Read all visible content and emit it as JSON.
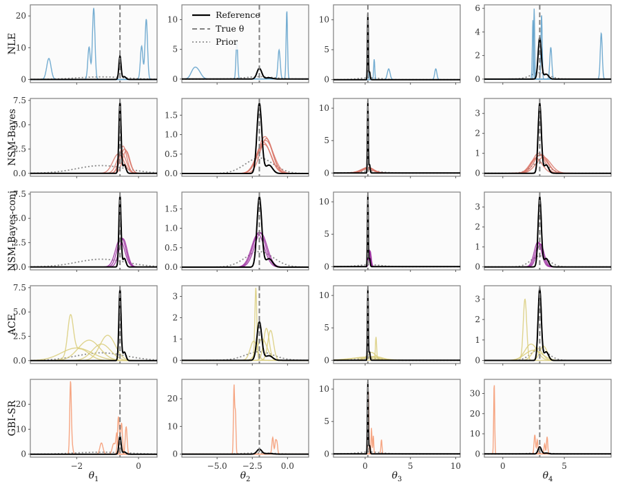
{
  "chart_data": {
    "type": "line",
    "title": "",
    "row_labels": [
      "NLE",
      "NSM-Bayes",
      "NSM-Bayes-conj",
      "ACE",
      "GBI-SR"
    ],
    "method_colors": {
      "NLE": "#5b9ec9",
      "NSM-Bayes": "#d9776a",
      "NSM-Bayes-conj": "#9a2b9e",
      "ACE": "#d9cc7a",
      "GBI-SR": "#f4956c"
    },
    "reference_color": "#000000",
    "true_line_color": "#808080",
    "prior_color": "#888888",
    "legend": {
      "location": "top-left of column 2, row 1",
      "entries": [
        {
          "label": "Reference",
          "style": "solid"
        },
        {
          "label": "True θ",
          "style": "dashed"
        },
        {
          "label": "Prior",
          "style": "dotted"
        }
      ]
    },
    "columns": [
      {
        "xlabel": "θ",
        "xlabel_sub": "1",
        "xlim": [
          -3.5,
          0.6
        ],
        "xticks": [
          -2,
          0
        ],
        "xtick_labels": [
          "−2",
          "0"
        ],
        "true_theta": -0.6
      },
      {
        "xlabel": "θ",
        "xlabel_sub": "2",
        "xlim": [
          -7.5,
          1.5
        ],
        "xticks": [
          -5,
          -2.5,
          0
        ],
        "xtick_labels": [
          "−5.0",
          "−2.5",
          "0.0"
        ],
        "true_theta": -2.0
      },
      {
        "xlabel": "θ",
        "xlabel_sub": "3",
        "xlim": [
          -3.5,
          10.5
        ],
        "xticks": [
          0,
          5,
          10
        ],
        "xtick_labels": [
          "0",
          "5",
          "10"
        ],
        "true_theta": 0.3
      },
      {
        "xlabel": "θ",
        "xlabel_sub": "4",
        "xlim": [
          -1.5,
          8.8
        ],
        "xticks": [
          0,
          5
        ],
        "xtick_labels": [
          "0",
          "5"
        ],
        "true_theta": 3.0
      }
    ],
    "reference": [
      {
        "center": -0.6,
        "sd": 0.035,
        "peak": 7.3
      },
      {
        "center": -2.0,
        "sd": 0.17,
        "peak": 1.8
      },
      {
        "center": 0.3,
        "sd": 0.045,
        "peak": 11.0
      },
      {
        "center": 3.0,
        "sd": 0.13,
        "peak": 3.5
      }
    ],
    "prior": [
      {
        "center": -1.2,
        "sd": 0.8,
        "peak": 0.8
      },
      {
        "center": -2.0,
        "sd": 1.0,
        "peak": 0.4
      },
      {
        "center": 0.5,
        "sd": 1.2,
        "peak": 0.3
      },
      {
        "center": 3.0,
        "sd": 0.7,
        "peak": 0.55
      }
    ],
    "panels": [
      {
        "method": "NLE",
        "ylims": [
          [
            -1,
            23.5
          ],
          [
            -0.6,
            12.5
          ],
          [
            -0.5,
            12.5
          ],
          [
            -0.3,
            6.3
          ]
        ],
        "yticks": [
          [
            0,
            10,
            20
          ],
          [
            0,
            5,
            10
          ],
          [
            0,
            5,
            10
          ],
          [
            0,
            2,
            4,
            6
          ]
        ],
        "ytick_labels": [
          [
            "0",
            "10",
            "20"
          ],
          [
            "0",
            "5",
            "10"
          ],
          [
            "0",
            "5",
            "10"
          ],
          [
            "0",
            "2",
            "4",
            "6"
          ]
        ],
        "estimates": [
          [
            [
              [
                -2.9,
                0.07,
                6.6
              ]
            ],
            [
              [
                -1.45,
                0.04,
                22.5
              ],
              [
                -1.6,
                0.04,
                10.2
              ]
            ],
            [
              [
                0.1,
                0.04,
                10.5
              ],
              [
                0.25,
                0.04,
                19
              ]
            ]
          ],
          [
            [
              [
                -6.4,
                0.25,
                1.5
              ],
              [
                -6.7,
                0.2,
                1.0
              ]
            ],
            [
              [
                -3.6,
                0.06,
                6.5
              ],
              [
                -0.6,
                0.08,
                4.9
              ],
              [
                -0.05,
                0.05,
                11.5
              ]
            ]
          ],
          [
            [
              [
                0.3,
                0.05,
                10.5
              ]
            ],
            [
              [
                1.0,
                0.06,
                3.4
              ],
              [
                2.6,
                0.15,
                1.8
              ]
            ],
            [
              [
                7.8,
                0.12,
                1.8
              ]
            ]
          ],
          [
            [
              [
                2.45,
                0.05,
                5.0
              ]
            ],
            [
              [
                2.55,
                0.04,
                6.0
              ],
              [
                3.15,
                0.05,
                5.5
              ]
            ],
            [
              [
                3.9,
                0.08,
                2.7
              ]
            ],
            [
              [
                8.0,
                0.08,
                3.9
              ]
            ]
          ]
        ]
      },
      {
        "method": "NSM-Bayes",
        "ylims": [
          [
            -0.3,
            7.7
          ],
          [
            -0.07,
            1.93
          ],
          [
            -0.5,
            11.5
          ],
          [
            -0.15,
            3.75
          ]
        ],
        "yticks": [
          [
            0,
            2.5,
            5,
            7.5
          ],
          [
            0,
            0.5,
            1,
            1.5
          ],
          [
            0,
            5,
            10
          ],
          [
            0,
            1,
            2,
            3
          ]
        ],
        "ytick_labels": [
          [
            "0.0",
            "2.5",
            "5.0",
            "7.5"
          ],
          [
            "0.0",
            "0.5",
            "1.0",
            "1.5"
          ],
          [
            "0",
            "5",
            "10"
          ],
          [
            "0",
            "1",
            "2",
            "3"
          ]
        ],
        "estimates": [
          [
            [
              [
                -0.5,
                0.12,
                2.8
              ]
            ],
            [
              [
                -0.4,
                0.12,
                2.3
              ]
            ],
            [
              [
                -0.55,
                0.15,
                2.1
              ]
            ],
            [
              [
                -0.65,
                0.18,
                2.0
              ]
            ],
            [
              [
                -0.45,
                0.14,
                2.5
              ]
            ]
          ],
          [
            [
              [
                -1.6,
                0.5,
                0.95
              ]
            ],
            [
              [
                -1.5,
                0.45,
                0.9
              ]
            ],
            [
              [
                -1.7,
                0.5,
                0.8
              ]
            ],
            [
              [
                -1.55,
                0.55,
                0.85
              ]
            ],
            [
              [
                -1.65,
                0.5,
                0.75
              ]
            ]
          ],
          [
            [
              [
                0.3,
                0.6,
                0.9
              ]
            ],
            [
              [
                0.2,
                0.7,
                0.8
              ]
            ],
            [
              [
                0.4,
                0.65,
                0.7
              ]
            ],
            [
              [
                0.1,
                0.75,
                0.6
              ]
            ],
            [
              [
                0.35,
                0.6,
                0.85
              ]
            ]
          ],
          [
            [
              [
                2.9,
                0.5,
                1.0
              ]
            ],
            [
              [
                3.1,
                0.55,
                0.95
              ]
            ],
            [
              [
                3.3,
                0.6,
                0.8
              ]
            ],
            [
              [
                2.7,
                0.5,
                0.75
              ]
            ],
            [
              [
                3.0,
                0.6,
                0.9
              ]
            ]
          ]
        ]
      },
      {
        "method": "NSM-Bayes-conj",
        "ylims": [
          [
            -0.3,
            7.7
          ],
          [
            -0.07,
            1.93
          ],
          [
            -0.5,
            11.5
          ],
          [
            -0.15,
            3.75
          ]
        ],
        "yticks": [
          [
            0,
            2.5,
            5,
            7.5
          ],
          [
            0,
            0.5,
            1,
            1.5
          ],
          [
            0,
            5,
            10
          ],
          [
            0,
            1,
            2,
            3
          ]
        ],
        "ytick_labels": [
          [
            "0.0",
            "2.5",
            "5.0",
            "7.5"
          ],
          [
            "0.0",
            "0.5",
            "1.0",
            "1.5"
          ],
          [
            "0",
            "5",
            "10"
          ],
          [
            "0",
            "1",
            "2",
            "3"
          ]
        ],
        "estimates": [
          [
            [
              [
                -0.55,
                0.14,
                3.0
              ]
            ],
            [
              [
                -0.5,
                0.13,
                2.9
              ]
            ],
            [
              [
                -0.6,
                0.15,
                2.8
              ]
            ]
          ],
          [
            [
              [
                -2.0,
                0.45,
                0.9
              ]
            ],
            [
              [
                -1.9,
                0.45,
                0.88
              ]
            ],
            [
              [
                -2.1,
                0.45,
                0.85
              ]
            ]
          ],
          [
            [
              [
                0.5,
                0.12,
                2.5
              ]
            ],
            [
              [
                0.55,
                0.12,
                2.4
              ]
            ],
            [
              [
                0.45,
                0.12,
                2.3
              ]
            ]
          ],
          [
            [
              [
                2.85,
                0.3,
                1.25
              ]
            ],
            [
              [
                2.95,
                0.3,
                1.2
              ]
            ],
            [
              [
                3.05,
                0.3,
                1.15
              ]
            ]
          ]
        ]
      },
      {
        "method": "ACE",
        "ylims": [
          [
            -0.3,
            7.7
          ],
          [
            -0.15,
            3.5
          ],
          [
            -0.5,
            11.5
          ],
          [
            -0.15,
            3.65
          ]
        ],
        "yticks": [
          [
            0,
            2.5,
            5,
            7.5
          ],
          [
            0,
            1,
            2,
            3
          ],
          [
            0,
            5,
            10
          ],
          [
            0,
            1,
            2,
            3
          ]
        ],
        "ytick_labels": [
          [
            "0.0",
            "2.5",
            "5.0",
            "7.5"
          ],
          [
            "0",
            "1",
            "2",
            "3"
          ],
          [
            "0",
            "5",
            "10"
          ],
          [
            "0",
            "1",
            "2",
            "3"
          ]
        ],
        "estimates": [
          [
            [
              [
                -2.2,
                0.09,
                4.0
              ],
              [
                -1.9,
                0.3,
                1.2
              ]
            ],
            [
              [
                -1.6,
                0.35,
                2.1
              ]
            ],
            [
              [
                -1.2,
                0.3,
                1.7
              ]
            ],
            [
              [
                -2.0,
                0.5,
                1.3
              ]
            ],
            [
              [
                -1.0,
                0.25,
                2.6
              ]
            ]
          ],
          [
            [
              [
                -2.25,
                0.07,
                3.4
              ]
            ],
            [
              [
                -1.5,
                0.2,
                1.5
              ]
            ],
            [
              [
                -1.2,
                0.2,
                1.4
              ]
            ],
            [
              [
                -2.4,
                0.25,
                0.9
              ]
            ],
            [
              [
                -1.8,
                0.35,
                1.0
              ]
            ]
          ],
          [
            [
              [
                1.2,
                0.07,
                3.6
              ]
            ],
            [
              [
                0.7,
                0.5,
                1.2
              ]
            ],
            [
              [
                0.2,
                1.5,
                0.5
              ]
            ],
            [
              [
                1.0,
                0.9,
                0.6
              ]
            ],
            [
              [
                -0.5,
                1.5,
                0.35
              ]
            ]
          ],
          [
            [
              [
                1.8,
                0.14,
                3.0
              ]
            ],
            [
              [
                2.3,
                0.5,
                0.8
              ]
            ],
            [
              [
                2.8,
                0.4,
                0.6
              ]
            ],
            [
              [
                3.3,
                0.3,
                0.7
              ]
            ],
            [
              [
                2.5,
                0.7,
                0.5
              ]
            ]
          ]
        ]
      },
      {
        "method": "GBI-SR",
        "ylims": [
          [
            -1.2,
            30
          ],
          [
            -1.1,
            27
          ],
          [
            -0.5,
            11.5
          ],
          [
            -1.6,
            37
          ]
        ],
        "yticks": [
          [
            0,
            10,
            20
          ],
          [
            0,
            10,
            20
          ],
          [
            0,
            5,
            10
          ],
          [
            0,
            10,
            20,
            30
          ]
        ],
        "ytick_labels": [
          [
            "0",
            "10",
            "20"
          ],
          [
            "0",
            "10",
            "20"
          ],
          [
            "0",
            "5",
            "10"
          ],
          [
            "0",
            "10",
            "20",
            "30"
          ]
        ],
        "estimates": [
          [
            [
              [
                -2.2,
                0.025,
                28.5
              ],
              [
                -2.15,
                0.03,
                3.5
              ]
            ],
            [
              [
                -1.2,
                0.05,
                4.5
              ],
              [
                -0.65,
                0.03,
                15
              ],
              [
                -0.55,
                0.03,
                12.5
              ]
            ],
            [
              [
                -0.8,
                0.05,
                4.3
              ],
              [
                -0.4,
                0.03,
                11
              ],
              [
                -0.7,
                0.03,
                8
              ]
            ]
          ],
          [
            [
              [
                -3.8,
                0.04,
                24.5
              ],
              [
                -3.7,
                0.04,
                15
              ]
            ],
            [
              [
                -1.05,
                0.06,
                6.0
              ],
              [
                -0.85,
                0.05,
                4.5
              ],
              [
                -0.75,
                0.05,
                4.0
              ]
            ]
          ],
          [
            [
              [
                0.35,
                0.05,
                10.0
              ]
            ],
            [
              [
                0.7,
                0.05,
                4.0
              ],
              [
                0.9,
                0.05,
                2.8
              ]
            ],
            [
              [
                1.8,
                0.06,
                2.2
              ]
            ]
          ],
          [
            [
              [
                -0.7,
                0.04,
                35
              ]
            ],
            [
              [
                2.6,
                0.06,
                9.5
              ],
              [
                2.8,
                0.05,
                7.0
              ]
            ],
            [
              [
                3.6,
                0.05,
                8.5
              ],
              [
                3.4,
                0.05,
                5.0
              ]
            ]
          ]
        ]
      }
    ]
  }
}
